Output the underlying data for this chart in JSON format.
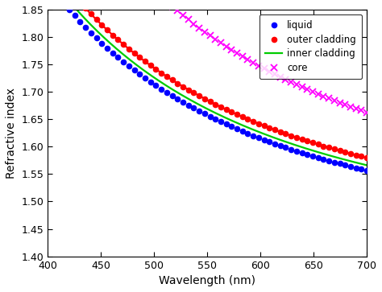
{
  "xlabel": "Wavelength (nm)",
  "ylabel": "Refractive index",
  "xlim": [
    400,
    700
  ],
  "ylim": [
    1.4,
    1.85
  ],
  "yticks": [
    1.4,
    1.45,
    1.5,
    1.55,
    1.6,
    1.65,
    1.7,
    1.75,
    1.8,
    1.85
  ],
  "xticks": [
    400,
    450,
    500,
    550,
    600,
    650,
    700
  ],
  "liquid_color": "#0000ff",
  "outer_cladding_color": "#ff0000",
  "inner_cladding_color": "#00cc00",
  "core_color": "#ff00ff",
  "legend_labels": [
    "liquid",
    "outer cladding",
    "inner cladding",
    "core"
  ],
  "background_color": "#ffffff",
  "cauchy_liquid": {
    "A": 1.398,
    "B": 0.0765,
    "C": 0.0006
  },
  "cauchy_outer": {
    "A": 1.414,
    "B": 0.08,
    "C": 0.0006
  },
  "cauchy_inner": {
    "A": 1.4045,
    "B": 0.078,
    "C": 0.0006
  },
  "cauchy_core": {
    "A": 1.438,
    "B": 0.108,
    "C": 0.001
  },
  "n_sparse_markers": 60
}
